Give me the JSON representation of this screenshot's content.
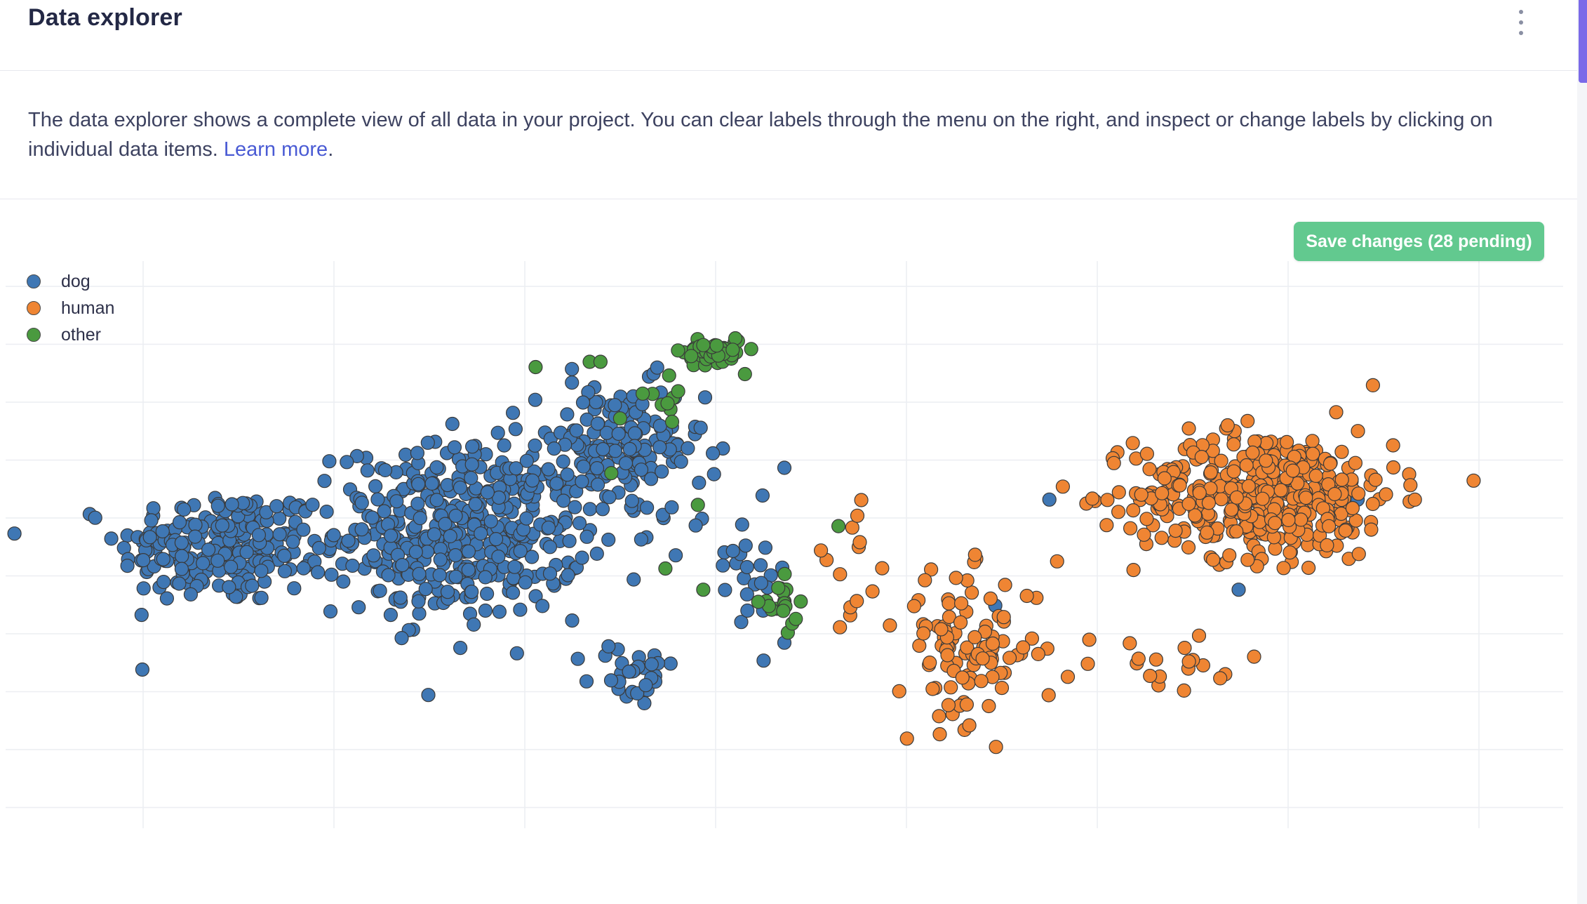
{
  "header": {
    "title": "Data explorer",
    "menu_icon": "more-vertical-icon"
  },
  "description": {
    "text": "The data explorer shows a complete view of all data in your project. You can clear labels through the menu on the right, and inspect or change labels by clicking on individual data items.",
    "link_text": "Learn more",
    "suffix": "."
  },
  "toolbar": {
    "save_label": "Save changes (28 pending)",
    "save_color": "#62c98f"
  },
  "chart_data": {
    "type": "scatter",
    "title": "",
    "xlabel": "",
    "ylabel": "",
    "grid": true,
    "legend_placement": "top-left",
    "series": [
      {
        "name": "dog",
        "color": "#3f77b4",
        "clusters": [
          {
            "cx": 2.2,
            "cy": 4.1,
            "sx": 1.9,
            "sy": 1.1,
            "n": 220
          },
          {
            "cx": 6.6,
            "cy": 4.4,
            "sx": 2.3,
            "sy": 1.6,
            "n": 430
          },
          {
            "cx": 9.5,
            "cy": 5.9,
            "sx": 1.6,
            "sy": 1.3,
            "n": 160
          },
          {
            "cx": 9.8,
            "cy": 1.7,
            "sx": 0.8,
            "sy": 0.6,
            "n": 30
          },
          {
            "cx": 11.8,
            "cy": 3.8,
            "sx": 0.9,
            "sy": 1.4,
            "n": 25
          }
        ],
        "extra_points": [
          [
            12.6,
            2.3
          ],
          [
            12.6,
            5.6
          ],
          [
            17.5,
            5.0
          ],
          [
            21.6,
            6.0
          ],
          [
            22.0,
            5.6
          ],
          [
            23.2,
            5.0
          ],
          [
            21.0,
            3.3
          ],
          [
            16.5,
            3.0
          ]
        ]
      },
      {
        "name": "human",
        "color": "#ef8533",
        "clusters": [
          {
            "cx": 21.5,
            "cy": 5.1,
            "sx": 2.4,
            "sy": 1.2,
            "n": 430
          },
          {
            "cx": 16.0,
            "cy": 2.2,
            "sx": 1.3,
            "sy": 1.4,
            "n": 100
          },
          {
            "cx": 13.8,
            "cy": 4.0,
            "sx": 0.8,
            "sy": 1.2,
            "n": 14
          },
          {
            "cx": 19.5,
            "cy": 1.8,
            "sx": 2.0,
            "sy": 0.7,
            "n": 20
          }
        ]
      },
      {
        "name": "other",
        "color": "#4a9a3f",
        "clusters": [
          {
            "cx": 11.3,
            "cy": 7.8,
            "sx": 0.55,
            "sy": 0.3,
            "n": 55
          },
          {
            "cx": 12.5,
            "cy": 3.0,
            "sx": 0.35,
            "sy": 0.45,
            "n": 18
          },
          {
            "cx": 10.6,
            "cy": 6.9,
            "sx": 0.7,
            "sy": 0.4,
            "n": 10
          }
        ],
        "extra_points": [
          [
            8.0,
            7.5
          ],
          [
            9.0,
            7.6
          ],
          [
            9.2,
            7.6
          ],
          [
            9.4,
            5.5
          ],
          [
            11.0,
            4.9
          ],
          [
            10.4,
            3.7
          ],
          [
            13.6,
            4.5
          ],
          [
            11.1,
            3.3
          ]
        ]
      }
    ],
    "xlim": [
      -1.8,
      27
    ],
    "ylim": [
      -1.2,
      9.5
    ]
  }
}
